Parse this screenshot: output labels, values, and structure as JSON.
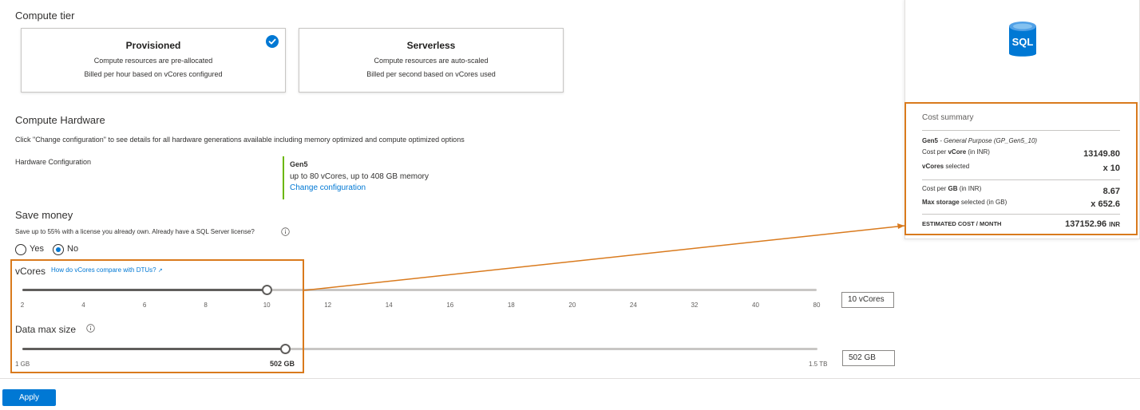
{
  "compute_tier": {
    "title": "Compute tier",
    "cards": [
      {
        "title": "Provisioned",
        "line1": "Compute resources are pre-allocated",
        "line2": "Billed per hour based on vCores configured",
        "selected": true
      },
      {
        "title": "Serverless",
        "line1": "Compute resources are auto-scaled",
        "line2": "Billed per second based on vCores used",
        "selected": false
      }
    ]
  },
  "compute_hardware": {
    "title": "Compute Hardware",
    "description": "Click \"Change configuration\" to see details for all hardware generations available including memory optimized and compute optimized options",
    "config_label": "Hardware Configuration",
    "gen_name": "Gen5",
    "gen_desc": "up to 80 vCores, up to 408 GB memory",
    "change_link": "Change configuration"
  },
  "save_money": {
    "title": "Save money",
    "description": "Save up to 55% with a license you already own. Already have a SQL Server license?",
    "options": [
      "Yes",
      "No"
    ],
    "selected": "No"
  },
  "vcores": {
    "label": "vCores",
    "link": "How do vCores compare with DTUs?",
    "ticks": [
      "2",
      "4",
      "6",
      "8",
      "10",
      "12",
      "14",
      "16",
      "18",
      "20",
      "24",
      "32",
      "40",
      "80"
    ],
    "selected_index": 4,
    "value_box": "10 vCores"
  },
  "data_max_size": {
    "label": "Data max size",
    "min_label": "1 GB",
    "current_label": "502 GB",
    "max_label": "1.5 TB",
    "fraction": 0.33,
    "value_box": "502 GB"
  },
  "cost_summary": {
    "title": "Cost summary",
    "tier_bold": "Gen5",
    "tier_italic": " - General Purpose (GP_Gen5_10)",
    "cost_per_vcore_pre": "Cost per ",
    "cost_per_vcore_bold": "vCore",
    "cost_per_vcore_post": " (in INR)",
    "cost_per_vcore_value": "13149.80",
    "vcores_selected_bold": "vCores",
    "vcores_selected_post": " selected",
    "vcores_selected_value": "x 10",
    "cost_per_gb_pre": "Cost per ",
    "cost_per_gb_bold": "GB",
    "cost_per_gb_post": " (in INR)",
    "cost_per_gb_value": "8.67",
    "max_storage_bold": "Max storage",
    "max_storage_post": " selected (in GB)",
    "max_storage_value": "x 652.6",
    "estimated_label": "ESTIMATED COST / MONTH",
    "estimated_value": "137152.96",
    "estimated_unit": "INR"
  },
  "sql_icon_text": "SQL",
  "apply_label": "Apply",
  "colors": {
    "accent": "#0078d4",
    "highlight": "#d97a1d",
    "hardware_bar": "#6bb700"
  }
}
